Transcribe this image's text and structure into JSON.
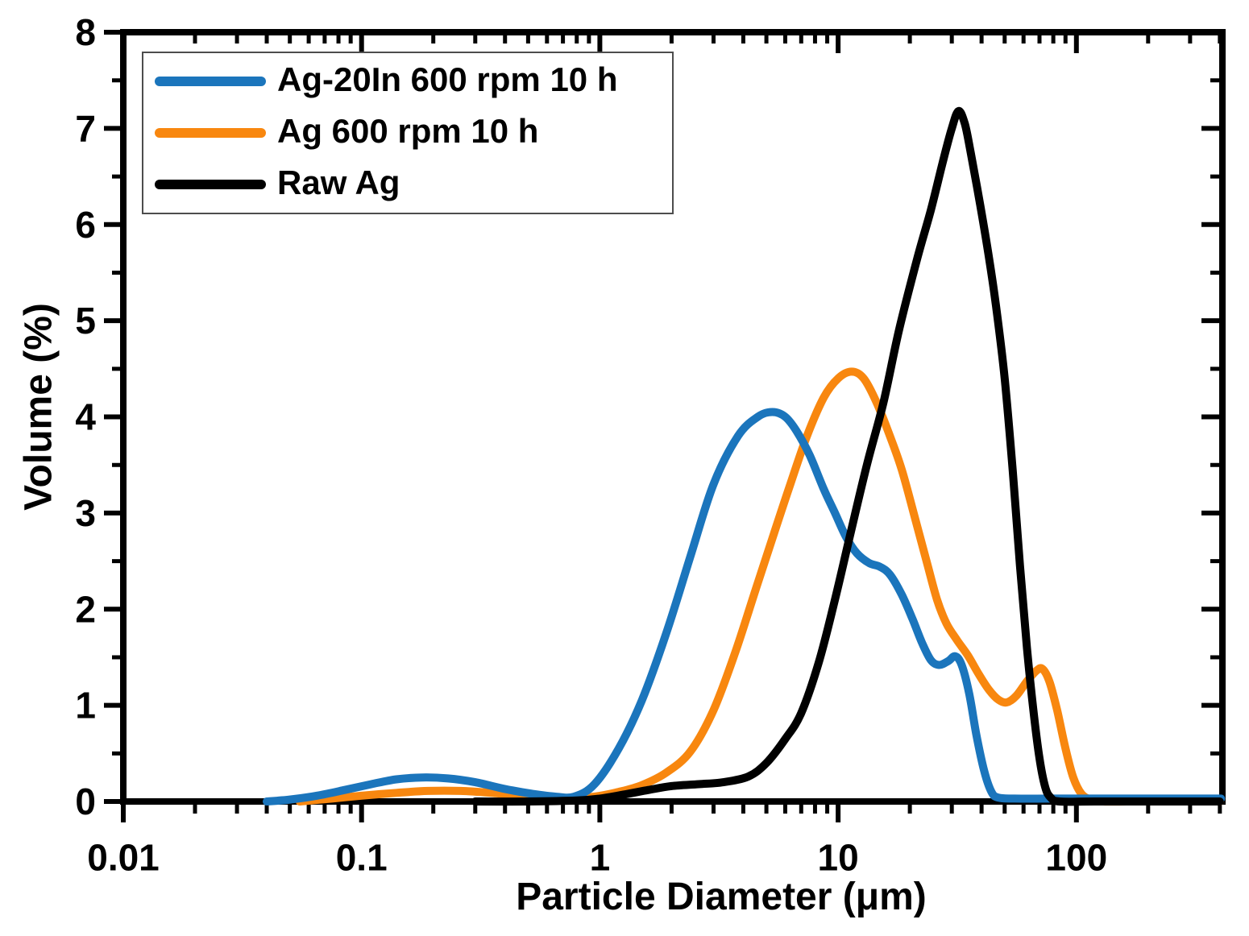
{
  "figure": {
    "background": "#ffffff",
    "axis_color": "#000000"
  },
  "chart_data": {
    "type": "line",
    "title": "",
    "xlabel": "Particle Diameter (μm)",
    "ylabel": "Volume (%)",
    "x_scale": "log",
    "xlim": [
      0.01,
      410
    ],
    "ylim": [
      0,
      8
    ],
    "grid": false,
    "legend_position": "upper-left",
    "x_ticks": {
      "values": [
        0.01,
        0.1,
        1,
        10,
        100
      ],
      "labels": [
        "0.01",
        "0.1",
        "1",
        "10",
        "100"
      ]
    },
    "y_ticks": {
      "values": [
        0,
        1,
        2,
        3,
        4,
        5,
        6,
        7,
        8
      ],
      "labels": [
        "0",
        "1",
        "2",
        "3",
        "4",
        "5",
        "6",
        "7",
        "8"
      ]
    },
    "y_minor_tick_step": 0.5,
    "series": [
      {
        "id": "ag600",
        "name": "Ag 600 rpm 10 h",
        "color": "#f8870f",
        "points": [
          [
            0.055,
            0.0
          ],
          [
            0.075,
            0.03
          ],
          [
            0.1,
            0.06
          ],
          [
            0.14,
            0.09
          ],
          [
            0.19,
            0.11
          ],
          [
            0.26,
            0.11
          ],
          [
            0.35,
            0.09
          ],
          [
            0.47,
            0.06
          ],
          [
            0.6,
            0.04
          ],
          [
            0.75,
            0.03
          ],
          [
            0.95,
            0.05
          ],
          [
            1.2,
            0.1
          ],
          [
            1.5,
            0.17
          ],
          [
            1.9,
            0.3
          ],
          [
            2.4,
            0.52
          ],
          [
            3.0,
            0.95
          ],
          [
            3.7,
            1.55
          ],
          [
            4.5,
            2.2
          ],
          [
            5.4,
            2.8
          ],
          [
            6.3,
            3.3
          ],
          [
            7.4,
            3.8
          ],
          [
            8.7,
            4.2
          ],
          [
            10.0,
            4.4
          ],
          [
            11.4,
            4.47
          ],
          [
            12.8,
            4.4
          ],
          [
            14.5,
            4.15
          ],
          [
            16.5,
            3.8
          ],
          [
            18.5,
            3.45
          ],
          [
            21.0,
            2.95
          ],
          [
            23.5,
            2.5
          ],
          [
            26.0,
            2.1
          ],
          [
            28.5,
            1.85
          ],
          [
            31.5,
            1.68
          ],
          [
            35.0,
            1.52
          ],
          [
            39.0,
            1.32
          ],
          [
            43.0,
            1.16
          ],
          [
            47.0,
            1.06
          ],
          [
            51.0,
            1.03
          ],
          [
            56.0,
            1.1
          ],
          [
            62.0,
            1.25
          ],
          [
            68.0,
            1.36
          ],
          [
            72.0,
            1.38
          ],
          [
            77.0,
            1.25
          ],
          [
            83.0,
            0.95
          ],
          [
            90.0,
            0.55
          ],
          [
            97.0,
            0.25
          ],
          [
            105.0,
            0.08
          ],
          [
            115.0,
            0.02
          ],
          [
            130.0,
            0.0
          ],
          [
            170.0,
            0.0
          ],
          [
            260.0,
            0.0
          ],
          [
            400.0,
            0.0
          ]
        ]
      },
      {
        "id": "ag20in",
        "name": "Ag-20In 600 rpm 10 h",
        "color": "#1b75bc",
        "points": [
          [
            0.04,
            0.0
          ],
          [
            0.05,
            0.02
          ],
          [
            0.065,
            0.06
          ],
          [
            0.085,
            0.12
          ],
          [
            0.11,
            0.18
          ],
          [
            0.14,
            0.23
          ],
          [
            0.18,
            0.25
          ],
          [
            0.23,
            0.24
          ],
          [
            0.3,
            0.2
          ],
          [
            0.4,
            0.13
          ],
          [
            0.52,
            0.08
          ],
          [
            0.65,
            0.05
          ],
          [
            0.78,
            0.05
          ],
          [
            0.95,
            0.18
          ],
          [
            1.2,
            0.55
          ],
          [
            1.5,
            1.05
          ],
          [
            1.9,
            1.75
          ],
          [
            2.4,
            2.55
          ],
          [
            3.0,
            3.3
          ],
          [
            3.8,
            3.8
          ],
          [
            4.6,
            4.0
          ],
          [
            5.3,
            4.05
          ],
          [
            6.0,
            4.0
          ],
          [
            6.7,
            3.85
          ],
          [
            7.6,
            3.6
          ],
          [
            8.7,
            3.25
          ],
          [
            9.7,
            3.0
          ],
          [
            10.8,
            2.75
          ],
          [
            12.0,
            2.58
          ],
          [
            13.5,
            2.48
          ],
          [
            15.0,
            2.44
          ],
          [
            16.5,
            2.36
          ],
          [
            18.5,
            2.15
          ],
          [
            20.5,
            1.9
          ],
          [
            22.5,
            1.65
          ],
          [
            24.5,
            1.47
          ],
          [
            26.5,
            1.42
          ],
          [
            29.0,
            1.46
          ],
          [
            31.0,
            1.51
          ],
          [
            33.0,
            1.42
          ],
          [
            35.5,
            1.12
          ],
          [
            38.0,
            0.7
          ],
          [
            41.0,
            0.32
          ],
          [
            44.0,
            0.1
          ],
          [
            47.0,
            0.04
          ],
          [
            55.0,
            0.03
          ],
          [
            80.0,
            0.03
          ],
          [
            150.0,
            0.03
          ],
          [
            270.0,
            0.03
          ],
          [
            405.0,
            0.03
          ]
        ]
      },
      {
        "id": "rawag",
        "name": "Raw Ag",
        "color": "#000000",
        "points": [
          [
            0.3,
            0.0
          ],
          [
            0.5,
            0.0
          ],
          [
            0.8,
            0.01
          ],
          [
            1.0,
            0.03
          ],
          [
            1.25,
            0.07
          ],
          [
            1.6,
            0.12
          ],
          [
            2.0,
            0.16
          ],
          [
            2.6,
            0.18
          ],
          [
            3.3,
            0.2
          ],
          [
            4.2,
            0.26
          ],
          [
            5.0,
            0.4
          ],
          [
            6.0,
            0.65
          ],
          [
            7.0,
            0.92
          ],
          [
            8.3,
            1.45
          ],
          [
            9.7,
            2.1
          ],
          [
            11.3,
            2.8
          ],
          [
            13.2,
            3.5
          ],
          [
            15.5,
            4.15
          ],
          [
            18.0,
            4.9
          ],
          [
            21.5,
            5.65
          ],
          [
            24.5,
            6.15
          ],
          [
            27.5,
            6.65
          ],
          [
            30.0,
            7.0
          ],
          [
            32.0,
            7.18
          ],
          [
            34.0,
            7.05
          ],
          [
            36.0,
            6.75
          ],
          [
            39.5,
            6.2
          ],
          [
            43.0,
            5.65
          ],
          [
            46.0,
            5.15
          ],
          [
            50.0,
            4.4
          ],
          [
            54.0,
            3.45
          ],
          [
            58.0,
            2.45
          ],
          [
            62.0,
            1.6
          ],
          [
            66.0,
            0.95
          ],
          [
            70.0,
            0.45
          ],
          [
            74.0,
            0.15
          ],
          [
            78.0,
            0.04
          ],
          [
            85.0,
            0.0
          ],
          [
            120.0,
            0.0
          ],
          [
            250.0,
            0.0
          ],
          [
            400.0,
            0.0
          ]
        ]
      }
    ],
    "legend_order": [
      1,
      0,
      2
    ]
  }
}
